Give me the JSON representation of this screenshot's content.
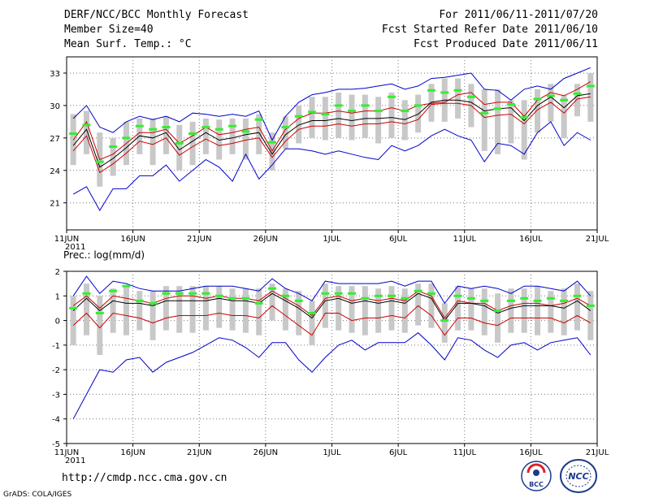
{
  "header": {
    "title": "DERF/NCC/BCC Monthly Forecast",
    "member_size": "Member Size=40",
    "variable": "Mean Surf. Temp.: °C",
    "period": "For 2011/06/11-2011/07/20",
    "started": "Fcst Started Refer Date 2011/06/10",
    "produced": "Fcst Produced Date 2011/06/11"
  },
  "footer": {
    "url": "http://cmdp.ncc.cma.gov.cn",
    "credit": "GrADS: COLA/IGES",
    "logo_left": "BCC",
    "logo_right": "NCC"
  },
  "colors": {
    "max_min": "#0000cc",
    "mean": "#000000",
    "spread": "#cc0000",
    "bar": "#c8c8c8",
    "marker": "#33ee33",
    "grid": "#777777"
  },
  "chart_data": [
    {
      "type": "line",
      "title": "Mean Surf. Temp.: °C",
      "xlabel_year": "2011",
      "xticks": [
        "11JUN",
        "16JUN",
        "21JUN",
        "26JUN",
        "1JUL",
        "6JUL",
        "11JUL",
        "16JUL",
        "21JUL"
      ],
      "ylim": [
        18.5,
        34.5
      ],
      "yticks": [
        21,
        24,
        27,
        30,
        33
      ],
      "days": 40,
      "series": [
        {
          "name": "max",
          "values": [
            28.8,
            30.0,
            28.0,
            27.5,
            28.5,
            29.0,
            28.7,
            29.0,
            28.5,
            29.3,
            29.2,
            29.0,
            29.2,
            29.0,
            29.5,
            26.8,
            29.0,
            30.3,
            31.0,
            31.2,
            31.5,
            31.5,
            31.6,
            31.8,
            32.0,
            31.5,
            31.8,
            32.5,
            32.6,
            32.8,
            33.0,
            31.5,
            31.4,
            30.5,
            31.5,
            31.8,
            31.5,
            32.5,
            33.0,
            33.5
          ]
        },
        {
          "name": "upper",
          "values": [
            26.8,
            28.5,
            25.0,
            25.5,
            26.5,
            27.5,
            27.5,
            27.8,
            26.5,
            27.2,
            28.0,
            27.3,
            27.5,
            27.8,
            28.0,
            25.8,
            27.8,
            28.8,
            29.3,
            29.3,
            29.5,
            29.3,
            29.5,
            29.5,
            29.8,
            29.5,
            30.0,
            30.2,
            30.3,
            31.0,
            31.2,
            30.1,
            30.3,
            30.3,
            29.0,
            30.5,
            31.2,
            30.9,
            31.5,
            32.2
          ]
        },
        {
          "name": "mean",
          "values": [
            26.3,
            27.8,
            24.3,
            25.1,
            26.1,
            27.2,
            27.0,
            27.5,
            25.9,
            26.7,
            27.5,
            26.8,
            27.0,
            27.3,
            27.5,
            25.5,
            27.3,
            28.2,
            28.6,
            28.6,
            28.8,
            28.6,
            28.8,
            28.8,
            28.9,
            28.7,
            29.2,
            30.3,
            30.5,
            30.5,
            30.3,
            29.5,
            29.7,
            29.8,
            28.6,
            30.0,
            30.8,
            29.8,
            30.9,
            31.1
          ]
        },
        {
          "name": "lower",
          "values": [
            25.8,
            27.2,
            23.8,
            24.6,
            25.6,
            26.7,
            26.4,
            27.0,
            25.4,
            26.2,
            26.9,
            26.3,
            26.5,
            26.8,
            27.0,
            25.2,
            26.7,
            27.8,
            28.1,
            28.1,
            28.3,
            28.1,
            28.3,
            28.3,
            28.5,
            28.3,
            28.7,
            30.1,
            30.2,
            30.2,
            30.0,
            28.9,
            29.1,
            29.2,
            28.3,
            29.6,
            30.3,
            29.3,
            30.6,
            30.8
          ]
        },
        {
          "name": "min",
          "values": [
            21.8,
            22.5,
            20.3,
            22.3,
            22.3,
            23.5,
            23.5,
            24.5,
            23.0,
            24.0,
            25.0,
            24.3,
            23.0,
            25.5,
            23.2,
            24.5,
            26.0,
            26.0,
            25.8,
            25.5,
            25.8,
            25.5,
            25.2,
            25.0,
            26.3,
            25.8,
            26.3,
            27.2,
            27.8,
            27.2,
            26.8,
            24.8,
            26.5,
            26.3,
            25.5,
            27.5,
            28.5,
            26.3,
            27.5,
            26.8
          ]
        },
        {
          "name": "marker",
          "values": [
            27.4,
            28.2,
            24.8,
            26.2,
            27.0,
            28.1,
            27.8,
            28.0,
            26.5,
            27.4,
            28.0,
            27.8,
            28.1,
            27.6,
            28.7,
            26.6,
            28.0,
            29.0,
            29.4,
            29.2,
            30.0,
            29.5,
            30.0,
            29.5,
            30.8,
            29.5,
            30.0,
            31.4,
            31.2,
            31.4,
            30.8,
            29.3,
            29.7,
            30.1,
            28.9,
            30.6,
            30.9,
            30.5,
            31.1,
            31.8
          ]
        },
        {
          "name": "bar_hi",
          "values": [
            29.2,
            29.5,
            27.5,
            27.0,
            28.5,
            28.8,
            28.8,
            29.0,
            28.2,
            28.5,
            28.8,
            28.7,
            28.8,
            28.8,
            29.2,
            27.5,
            29.0,
            30.0,
            30.8,
            30.8,
            31.2,
            31.0,
            31.0,
            30.8,
            31.2,
            30.5,
            31.0,
            32.0,
            32.5,
            32.5,
            32.0,
            31.5,
            31.5,
            30.5,
            30.5,
            31.5,
            32.0,
            31.0,
            32.0,
            33.0
          ]
        },
        {
          "name": "bar_lo",
          "values": [
            24.5,
            25.5,
            22.5,
            23.5,
            24.5,
            25.5,
            24.5,
            25.5,
            24.0,
            24.5,
            25.5,
            25.0,
            25.5,
            25.0,
            25.5,
            24.0,
            26.0,
            26.5,
            27.0,
            26.8,
            27.0,
            26.8,
            27.0,
            26.5,
            27.0,
            26.8,
            27.5,
            28.5,
            28.5,
            28.8,
            28.0,
            25.8,
            25.5,
            26.5,
            25.0,
            27.5,
            28.5,
            27.0,
            29.0,
            28.5
          ]
        }
      ]
    },
    {
      "type": "line",
      "title": "Prec.: log(mm/d)",
      "xlabel_year": "2011",
      "xticks": [
        "11JUN",
        "16JUN",
        "21JUN",
        "26JUN",
        "1JUL",
        "6JUL",
        "11JUL",
        "16JUL",
        "21JUL"
      ],
      "ylim": [
        -5,
        2
      ],
      "yticks": [
        -5,
        -4,
        -3,
        -2,
        -1,
        0,
        1,
        2
      ],
      "days": 40,
      "series": [
        {
          "name": "max",
          "values": [
            1.0,
            1.8,
            1.1,
            1.6,
            1.5,
            1.3,
            1.2,
            1.2,
            1.2,
            1.3,
            1.4,
            1.4,
            1.4,
            1.3,
            1.2,
            1.7,
            1.3,
            1.1,
            0.8,
            1.6,
            1.5,
            1.5,
            1.5,
            1.5,
            1.6,
            1.4,
            1.6,
            1.6,
            0.7,
            1.4,
            1.3,
            1.4,
            1.3,
            1.1,
            1.4,
            1.4,
            1.3,
            1.2,
            1.6,
            1.0
          ]
        },
        {
          "name": "upper",
          "values": [
            0.6,
            1.0,
            0.5,
            1.0,
            0.9,
            0.8,
            0.7,
            0.9,
            1.0,
            1.0,
            0.9,
            1.0,
            0.9,
            0.9,
            0.8,
            1.2,
            0.9,
            0.6,
            0.2,
            0.9,
            1.0,
            0.8,
            0.9,
            0.8,
            0.9,
            0.8,
            1.2,
            1.0,
            0.1,
            0.8,
            0.7,
            0.7,
            0.4,
            0.6,
            0.7,
            0.7,
            0.6,
            0.7,
            0.9,
            0.6
          ]
        },
        {
          "name": "mean",
          "values": [
            0.4,
            0.9,
            0.4,
            0.8,
            0.7,
            0.7,
            0.6,
            0.8,
            0.8,
            0.8,
            0.8,
            0.9,
            0.8,
            0.8,
            0.7,
            1.1,
            0.8,
            0.5,
            0.1,
            0.8,
            0.9,
            0.7,
            0.8,
            0.7,
            0.8,
            0.7,
            1.1,
            0.9,
            0.0,
            0.7,
            0.7,
            0.6,
            0.3,
            0.5,
            0.6,
            0.6,
            0.6,
            0.5,
            0.8,
            0.4
          ]
        },
        {
          "name": "lower",
          "values": [
            -0.2,
            0.3,
            -0.3,
            0.3,
            0.2,
            0.1,
            -0.1,
            0.1,
            0.2,
            0.2,
            0.2,
            0.3,
            0.2,
            0.2,
            0.1,
            0.6,
            0.2,
            -0.2,
            -0.6,
            0.3,
            0.3,
            0.0,
            0.1,
            0.1,
            0.2,
            0.1,
            0.6,
            0.2,
            -0.6,
            0.1,
            0.1,
            -0.1,
            -0.2,
            0.1,
            0.1,
            0.1,
            0.1,
            -0.1,
            0.2,
            -0.1
          ]
        },
        {
          "name": "min",
          "values": [
            -4.0,
            -3.0,
            -2.0,
            -2.1,
            -1.6,
            -1.5,
            -2.1,
            -1.7,
            -1.5,
            -1.3,
            -1.0,
            -0.7,
            -0.8,
            -1.1,
            -1.5,
            -0.9,
            -0.9,
            -1.6,
            -2.1,
            -1.5,
            -1.0,
            -0.8,
            -1.2,
            -0.9,
            -0.9,
            -0.9,
            -0.5,
            -1.0,
            -1.6,
            -0.7,
            -0.8,
            -1.2,
            -1.5,
            -1.0,
            -0.9,
            -1.2,
            -0.9,
            -0.8,
            -0.7,
            -1.4
          ]
        },
        {
          "name": "marker",
          "values": [
            0.5,
            1.1,
            0.3,
            1.2,
            1.4,
            0.8,
            0.7,
            1.1,
            1.1,
            1.1,
            1.1,
            1.0,
            0.9,
            0.9,
            0.7,
            1.3,
            1.0,
            0.8,
            0.3,
            1.1,
            1.1,
            1.1,
            0.9,
            1.0,
            1.0,
            0.9,
            1.2,
            1.1,
            0.0,
            1.0,
            0.9,
            0.8,
            0.4,
            0.8,
            0.9,
            0.8,
            0.9,
            0.8,
            1.0,
            0.6
          ]
        },
        {
          "name": "bar_hi",
          "values": [
            1.0,
            1.5,
            1.0,
            1.3,
            1.4,
            1.2,
            1.2,
            1.4,
            1.4,
            1.4,
            1.4,
            1.4,
            1.3,
            1.3,
            1.3,
            1.5,
            1.3,
            1.2,
            0.8,
            1.5,
            1.4,
            1.4,
            1.4,
            1.3,
            1.4,
            1.3,
            1.5,
            1.5,
            0.7,
            1.4,
            1.3,
            1.3,
            1.1,
            1.3,
            1.3,
            1.4,
            1.2,
            1.3,
            1.5,
            1.2
          ]
        },
        {
          "name": "bar_lo",
          "values": [
            -1.0,
            -0.6,
            -1.4,
            -0.5,
            -0.6,
            -0.4,
            -0.8,
            -0.4,
            -0.5,
            -0.5,
            -0.4,
            -0.3,
            -0.4,
            -0.5,
            -0.6,
            0.0,
            -0.4,
            -0.6,
            -1.0,
            -0.3,
            -0.4,
            -0.5,
            -0.6,
            -0.5,
            -0.4,
            -0.5,
            -0.2,
            -0.3,
            -0.9,
            -0.4,
            -0.4,
            -0.6,
            -0.9,
            -0.5,
            -0.5,
            -0.6,
            -0.5,
            -0.6,
            -0.4,
            -0.8
          ]
        }
      ]
    }
  ]
}
